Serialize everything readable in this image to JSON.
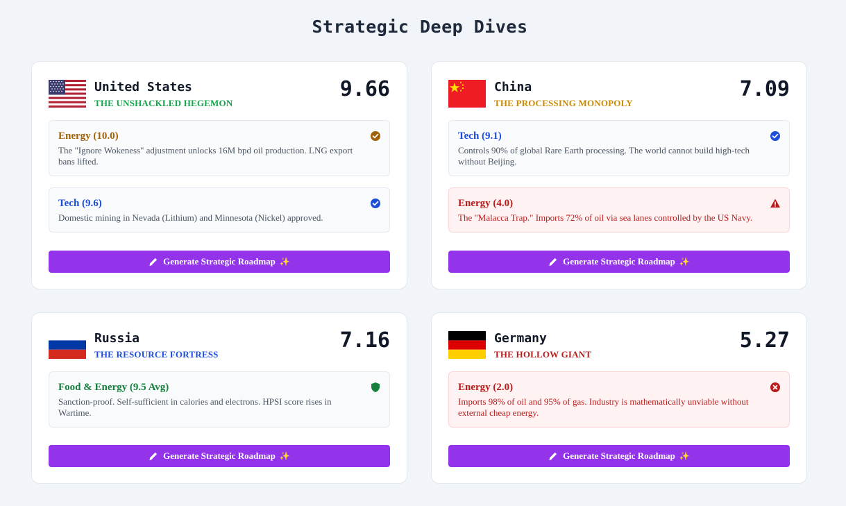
{
  "page_title": "Strategic Deep Dives",
  "colors": {
    "accent_button": "#9333ea",
    "positive_green": "#15803d",
    "gold": "#a16207",
    "blue": "#1d4ed8",
    "red": "#b91c1c"
  },
  "cards": [
    {
      "country": "United States",
      "subtitle": "THE UNSHACKLED HEGEMON",
      "subtitle_color": "#16a34a",
      "score": "9.66",
      "flag": "us-flag",
      "factors": [
        {
          "title": "Energy (10.0)",
          "desc": "The \"Ignore Wokeness\" adjustment unlocks 16M bpd oil production. LNG export bans lifted.",
          "icon": "check-circle-icon",
          "color": "#a16207"
        },
        {
          "title": "Tech (9.6)",
          "desc": "Domestic mining in Nevada (Lithium) and Minnesota (Nickel) approved.",
          "icon": "check-circle-icon",
          "color": "#1d4ed8"
        }
      ],
      "button_label": "Generate Strategic Roadmap"
    },
    {
      "country": "China",
      "subtitle": "THE PROCESSING MONOPOLY",
      "subtitle_color": "#ca8a04",
      "score": "7.09",
      "flag": "cn-flag",
      "factors": [
        {
          "title": "Tech (9.1)",
          "desc": "Controls 90% of global Rare Earth processing. The world cannot build high-tech without Beijing.",
          "icon": "check-circle-icon",
          "color": "#1d4ed8"
        },
        {
          "title": "Energy (4.0)",
          "desc": "The \"Malacca Trap.\" Imports 72% of oil via sea lanes controlled by the US Navy.",
          "icon": "warning-triangle-icon",
          "color": "#b91c1c"
        }
      ],
      "button_label": "Generate Strategic Roadmap"
    },
    {
      "country": "Russia",
      "subtitle": "THE RESOURCE FORTRESS",
      "subtitle_color": "#1d4ed8",
      "score": "7.16",
      "flag": "ru-flag",
      "factors": [
        {
          "title": "Food & Energy (9.5 Avg)",
          "desc": "Sanction-proof. Self-sufficient in calories and electrons. HPSI score rises in Wartime.",
          "icon": "shield-icon",
          "color": "#15803d"
        }
      ],
      "button_label": "Generate Strategic Roadmap"
    },
    {
      "country": "Germany",
      "subtitle": "THE HOLLOW GIANT",
      "subtitle_color": "#b91c1c",
      "score": "5.27",
      "flag": "de-flag",
      "factors": [
        {
          "title": "Energy (2.0)",
          "desc": "Imports 98% of oil and 95% of gas. Industry is mathematically unviable without external cheap energy.",
          "icon": "x-circle-icon",
          "color": "#b91c1c"
        }
      ],
      "button_label": "Generate Strategic Roadmap"
    }
  ]
}
